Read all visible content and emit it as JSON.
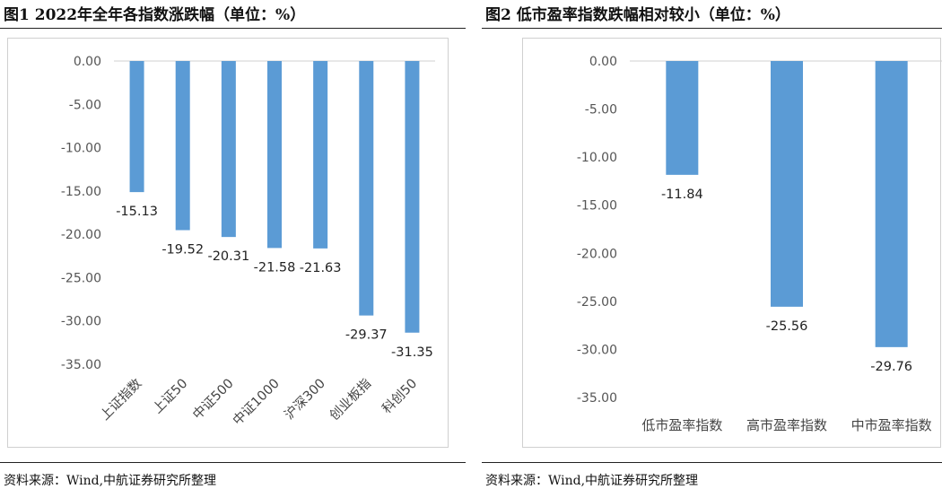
{
  "figures": [
    {
      "title": "图1  2022年全年各指数涨跌幅（单位：%）",
      "source": "资料来源：Wind,中航证券研究所整理"
    },
    {
      "title": "图2  低市盈率指数跌幅相对较小（单位：%）",
      "source": "资料来源：Wind,中航证券研究所整理"
    }
  ],
  "chart_data": [
    {
      "type": "bar",
      "categories": [
        "上证指数",
        "上证50",
        "中证500",
        "中证1000",
        "沪深300",
        "创业板指",
        "科创50"
      ],
      "values": [
        -15.13,
        -19.52,
        -20.31,
        -21.58,
        -21.63,
        -29.37,
        -31.35
      ],
      "value_labels": [
        "-15.13",
        "-19.52",
        "-20.31",
        "-21.58",
        "-21.63",
        "-29.37",
        "-31.35"
      ],
      "ylim": [
        -35,
        0
      ],
      "yticks": [
        "0.00",
        "-5.00",
        "-10.00",
        "-15.00",
        "-20.00",
        "-25.00",
        "-30.00",
        "-35.00"
      ],
      "xtick_rotation": "rotated",
      "bar_color": "#5b9bd5",
      "grid": false,
      "legend": "none"
    },
    {
      "type": "bar",
      "categories": [
        "低市盈率指数",
        "高市盈率指数",
        "中市盈率指数"
      ],
      "values": [
        -11.84,
        -25.56,
        -29.76
      ],
      "value_labels": [
        "-11.84",
        "-25.56",
        "-29.76"
      ],
      "ylim": [
        -35,
        0
      ],
      "yticks": [
        "0.00",
        "-5.00",
        "-10.00",
        "-15.00",
        "-20.00",
        "-25.00",
        "-30.00",
        "-35.00"
      ],
      "xtick_rotation": "horizontal",
      "bar_color": "#5b9bd5",
      "grid": false,
      "legend": "none"
    }
  ]
}
